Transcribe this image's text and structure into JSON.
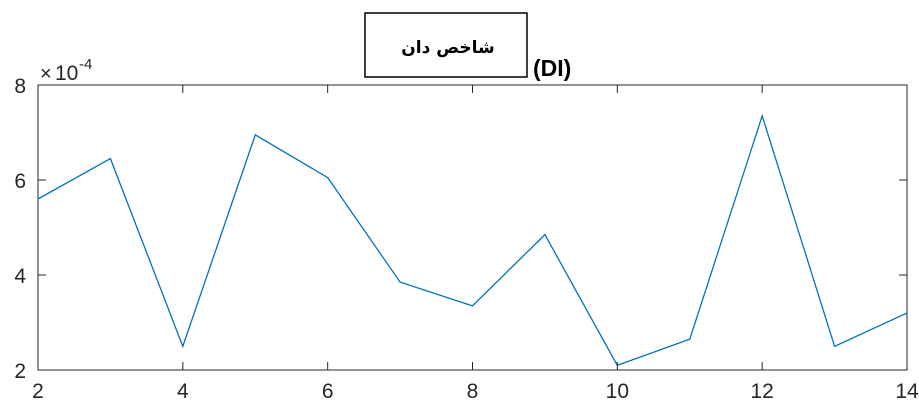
{
  "chart_data": {
    "type": "line",
    "title_boxed": "شاخص دان",
    "title_suffix": "(DI)",
    "axis_multiplier": {
      "times": "×",
      "base": "10",
      "exponent": "-4"
    },
    "xlim": [
      2,
      14
    ],
    "ylim": [
      2,
      8
    ],
    "x_ticks": [
      2,
      4,
      6,
      8,
      10,
      12,
      14
    ],
    "y_ticks": [
      2,
      4,
      6,
      8
    ],
    "x_tick_labels": [
      "2",
      "4",
      "6",
      "8",
      "10",
      "12",
      "14"
    ],
    "y_tick_labels": [
      "2",
      "4",
      "6",
      "8"
    ],
    "grid": false,
    "series": [
      {
        "color": "#0072BD",
        "x": [
          2,
          3,
          4,
          5,
          6,
          7,
          8,
          9,
          10,
          11,
          12,
          13,
          14
        ],
        "y": [
          5.6,
          6.45,
          2.5,
          6.95,
          6.05,
          3.85,
          3.35,
          4.85,
          2.1,
          2.65,
          7.35,
          2.5,
          3.2
        ]
      }
    ]
  }
}
